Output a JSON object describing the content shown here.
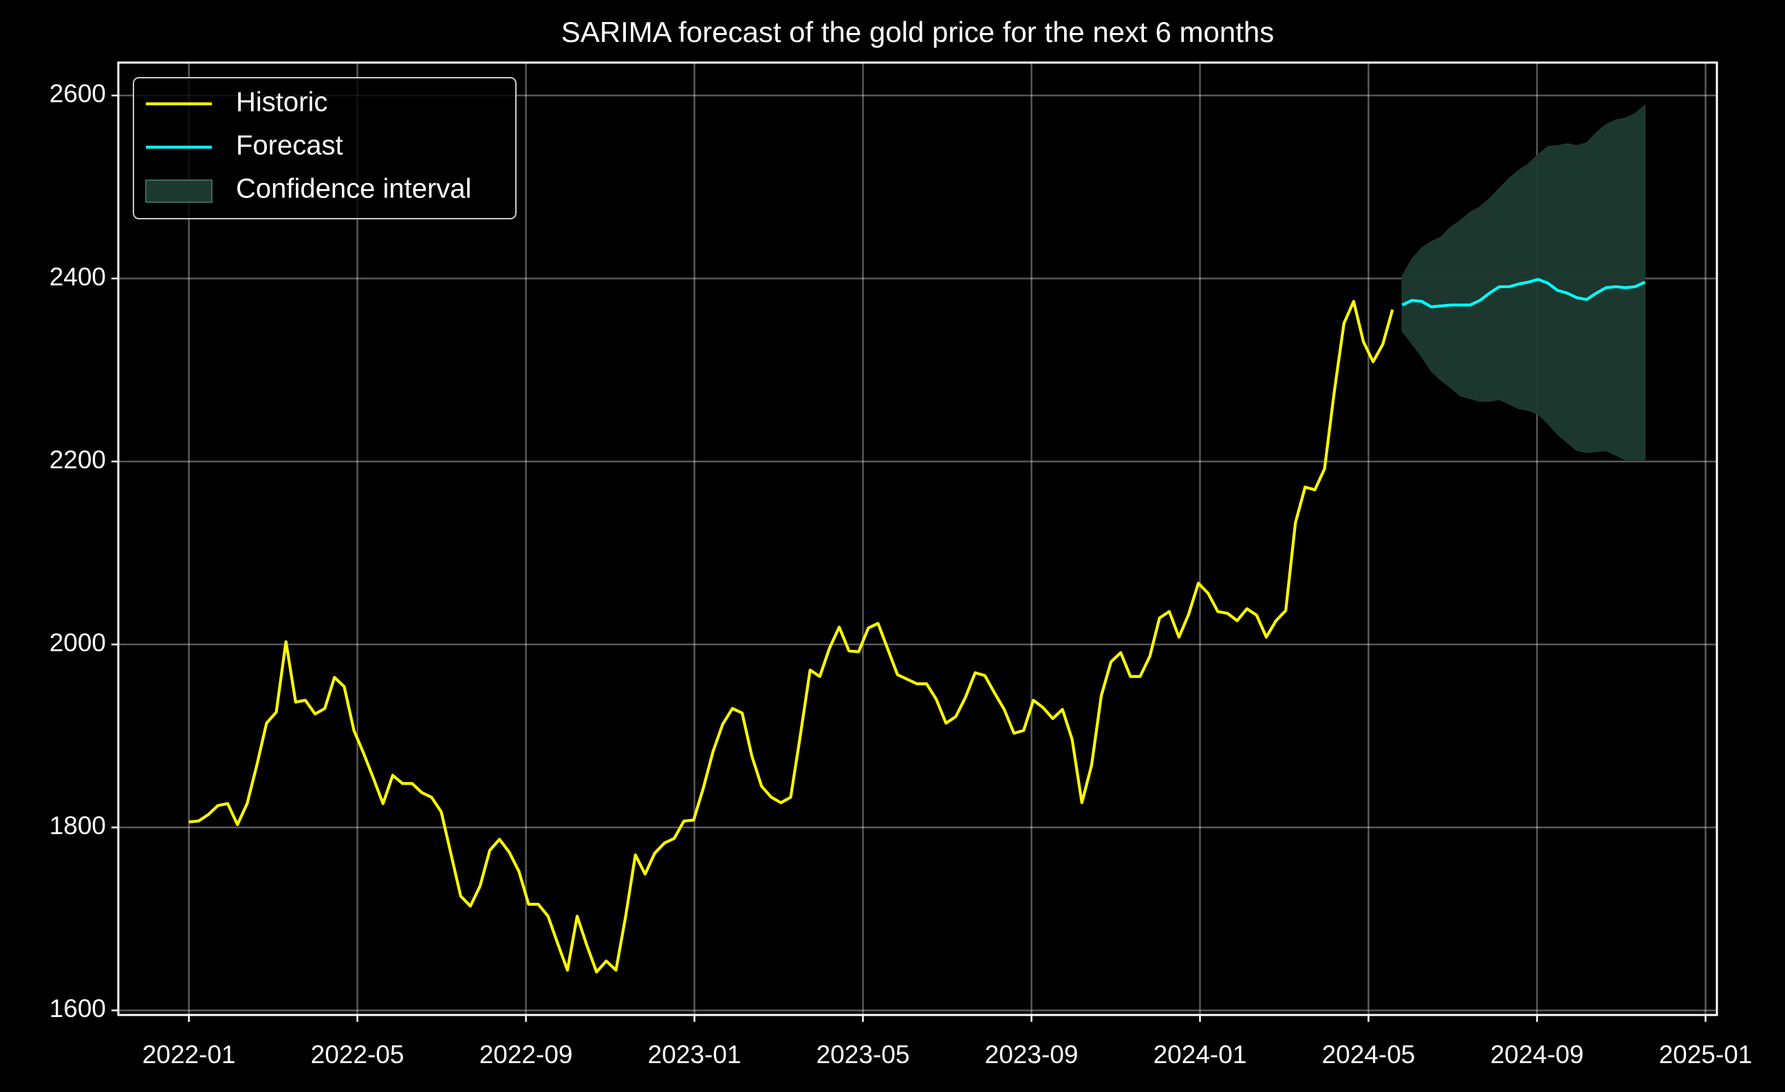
{
  "chart_data": {
    "type": "line",
    "title": "SARIMA forecast of the gold price for the next 6 months",
    "xlim": [
      2021.8604,
      2025.0225
    ],
    "xticks": [
      {
        "value": 2022,
        "label": "2022-01"
      },
      {
        "value": 2022.3333,
        "label": "2022-05"
      },
      {
        "value": 2022.6667,
        "label": "2022-09"
      },
      {
        "value": 2023,
        "label": "2023-01"
      },
      {
        "value": 2023.3333,
        "label": "2023-05"
      },
      {
        "value": 2023.6667,
        "label": "2023-09"
      },
      {
        "value": 2024,
        "label": "2024-01"
      },
      {
        "value": 2024.3333,
        "label": "2024-05"
      },
      {
        "value": 2024.6667,
        "label": "2024-09"
      },
      {
        "value": 2025,
        "label": "2025-01"
      }
    ],
    "ylim": [
      1595,
      2636
    ],
    "yticks": [
      1600,
      1800,
      2000,
      2200,
      2400,
      2600
    ],
    "grid": true,
    "legend": "upper left",
    "series": [
      {
        "name": "Historic",
        "color": "#ffff00",
        "x": [
          2022.0,
          2022.0192,
          2022.0384,
          2022.0576,
          2022.0768,
          2022.096,
          2022.1152,
          2022.1344,
          2022.1536,
          2022.1728,
          2022.192,
          2022.2112,
          2022.2304,
          2022.2496,
          2022.2688,
          2022.288,
          2022.3072,
          2022.3264,
          2022.3456,
          2022.3648,
          2022.384,
          2022.4032,
          2022.4224,
          2022.4416,
          2022.4608,
          2022.48,
          2022.4992,
          2022.5184,
          2022.5376,
          2022.5568,
          2022.576,
          2022.5952,
          2022.6144,
          2022.6336,
          2022.6528,
          2022.672,
          2022.6912,
          2022.7104,
          2022.7296,
          2022.7488,
          2022.768,
          2022.7872,
          2022.8064,
          2022.8256,
          2022.8448,
          2022.864,
          2022.8832,
          2022.9024,
          2022.9216,
          2022.9408,
          2022.96,
          2022.9792,
          2022.9984,
          2023.0176,
          2023.0368,
          2023.056,
          2023.0752,
          2023.0944,
          2023.1136,
          2023.1328,
          2023.152,
          2023.1712,
          2023.1904,
          2023.2096,
          2023.2288,
          2023.248,
          2023.2672,
          2023.2864,
          2023.3056,
          2023.3248,
          2023.344,
          2023.3632,
          2023.3824,
          2023.4016,
          2023.4208,
          2023.44,
          2023.4592,
          2023.4784,
          2023.4976,
          2023.5168,
          2023.536,
          2023.5552,
          2023.5744,
          2023.5936,
          2023.6128,
          2023.632,
          2023.6512,
          2023.6704,
          2023.6896,
          2023.7088,
          2023.728,
          2023.7472,
          2023.7664,
          2023.7856,
          2023.8048,
          2023.824,
          2023.8432,
          2023.8624,
          2023.8816,
          2023.9008,
          2023.92,
          2023.9392,
          2023.9584,
          2023.9776,
          2023.9968,
          2024.016,
          2024.0352,
          2024.0544,
          2024.0736,
          2024.0928,
          2024.112,
          2024.1312,
          2024.1504,
          2024.1696,
          2024.1888,
          2024.208,
          2024.2272,
          2024.2464,
          2024.2656,
          2024.2848,
          2024.304,
          2024.3232,
          2024.3424,
          2024.3616,
          2024.3808
        ],
        "values": [
          1806,
          1807,
          1814,
          1824,
          1826,
          1803,
          1826,
          1868,
          1914,
          1926,
          2003,
          1937,
          1939,
          1924,
          1930,
          1964,
          1954,
          1906,
          1881,
          1854,
          1826,
          1857,
          1848,
          1848,
          1838,
          1833,
          1817,
          1771,
          1725,
          1714,
          1736,
          1775,
          1787,
          1773,
          1752,
          1716,
          1716,
          1703,
          1673,
          1644,
          1703,
          1671,
          1642,
          1654,
          1644,
          1703,
          1770,
          1749,
          1772,
          1783,
          1788,
          1807,
          1808,
          1843,
          1883,
          1913,
          1930,
          1925,
          1878,
          1845,
          1833,
          1827,
          1833,
          1901,
          1972,
          1965,
          1996,
          2019,
          1993,
          1992,
          2018,
          2023,
          1995,
          1967,
          1962,
          1957,
          1957,
          1940,
          1914,
          1921,
          1942,
          1969,
          1966,
          1947,
          1929,
          1903,
          1906,
          1939,
          1931,
          1919,
          1929,
          1896,
          1827,
          1868,
          1944,
          1981,
          1991,
          1965,
          1965,
          1987,
          2029,
          2036,
          2008,
          2033,
          2067,
          2056,
          2036,
          2034,
          2026,
          2039,
          2032,
          2008,
          2026,
          2037,
          2133,
          2172,
          2169,
          2192,
          2276,
          2351,
          2375,
          2331,
          2309,
          2328,
          2366
        ]
      },
      {
        "name": "Forecast",
        "color": "#00ffff",
        "x": [
          2024.4,
          2024.4192,
          2024.4384,
          2024.4576,
          2024.4768,
          2024.496,
          2024.5152,
          2024.5344,
          2024.5536,
          2024.5728,
          2024.592,
          2024.6112,
          2024.6304,
          2024.6496,
          2024.6688,
          2024.688,
          2024.7072,
          2024.7264,
          2024.7456,
          2024.7648,
          2024.784,
          2024.8032,
          2024.8224,
          2024.8416,
          2024.8608,
          2024.88
        ],
        "values": [
          2371,
          2376,
          2375,
          2369,
          2370,
          2371,
          2371,
          2371,
          2376,
          2384,
          2391,
          2391,
          2394,
          2396,
          2399,
          2395,
          2387,
          2384,
          2379,
          2377,
          2384,
          2390,
          2391,
          2390,
          2391,
          2396
        ]
      },
      {
        "name": "Confidence interval",
        "color": "#1d3a30",
        "x": [
          2024.4,
          2024.4192,
          2024.4384,
          2024.4576,
          2024.4768,
          2024.496,
          2024.5152,
          2024.5344,
          2024.5536,
          2024.5728,
          2024.592,
          2024.6112,
          2024.6304,
          2024.6496,
          2024.6688,
          2024.688,
          2024.7072,
          2024.7264,
          2024.7456,
          2024.7648,
          2024.784,
          2024.8032,
          2024.8224,
          2024.8416,
          2024.8608,
          2024.88
        ],
        "lower": [
          2343,
          2329,
          2315,
          2299,
          2289,
          2281,
          2272,
          2269,
          2266,
          2266,
          2268,
          2263,
          2258,
          2256,
          2252,
          2242,
          2230,
          2221,
          2212,
          2210,
          2211,
          2212,
          2207,
          2202,
          2202,
          2202
        ],
        "upper": [
          2402,
          2421,
          2433,
          2440,
          2445,
          2456,
          2463,
          2472,
          2478,
          2487,
          2498,
          2509,
          2518,
          2525,
          2535,
          2544,
          2545,
          2547,
          2545,
          2548,
          2559,
          2568,
          2573,
          2575,
          2580,
          2589
        ]
      }
    ]
  }
}
